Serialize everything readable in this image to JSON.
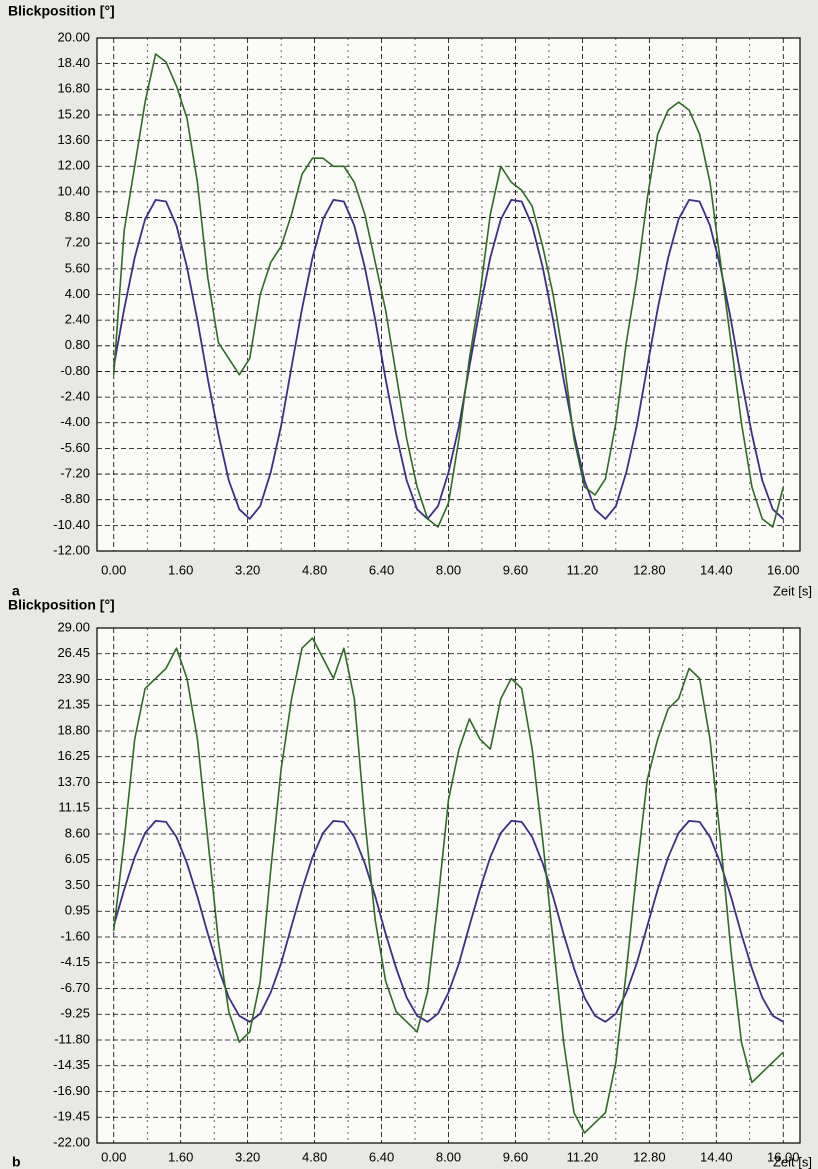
{
  "chart_data": [
    {
      "type": "line",
      "panel_label": "a",
      "ylabel": "Blickposition [°]",
      "xlabel": "Zeit [s]",
      "x": [
        0,
        0.25,
        0.5,
        0.75,
        1,
        1.25,
        1.5,
        1.75,
        2,
        2.25,
        2.5,
        2.75,
        3,
        3.25,
        3.5,
        3.75,
        4,
        4.25,
        4.5,
        4.75,
        5,
        5.25,
        5.5,
        5.75,
        6,
        6.25,
        6.5,
        6.75,
        7,
        7.25,
        7.5,
        7.75,
        8,
        8.25,
        8.5,
        8.75,
        9,
        9.25,
        9.5,
        9.75,
        10,
        10.25,
        10.5,
        10.75,
        11,
        11.25,
        11.5,
        11.75,
        12,
        12.25,
        12.5,
        12.75,
        13,
        13.25,
        13.5,
        13.75,
        14,
        14.25,
        14.5,
        14.75,
        15,
        15.25,
        15.5,
        15.75,
        16
      ],
      "series": [
        {
          "color": "#3b2f86",
          "values": [
            -0.5,
            3.1,
            6.3,
            8.7,
            9.9,
            9.8,
            8.3,
            5.7,
            2.4,
            -1.3,
            -4.7,
            -7.6,
            -9.4,
            -10,
            -9.2,
            -7.1,
            -4.2,
            -0.5,
            3.1,
            6.3,
            8.7,
            9.9,
            9.8,
            8.3,
            5.7,
            2.4,
            -1.3,
            -4.7,
            -7.6,
            -9.4,
            -10,
            -9.2,
            -7.1,
            -4.2,
            -0.5,
            3.1,
            6.3,
            8.7,
            9.9,
            9.8,
            8.3,
            5.7,
            2.4,
            -1.3,
            -4.7,
            -7.6,
            -9.4,
            -10,
            -9.2,
            -7.1,
            -4.2,
            -0.5,
            3.1,
            6.3,
            8.7,
            9.9,
            9.8,
            8.3,
            5.7,
            2.4,
            -1.3,
            -4.7,
            -7.6,
            -9.4,
            -10
          ]
        },
        {
          "color": "#2f6b25",
          "values": [
            -1,
            8,
            12,
            16,
            19,
            18.5,
            17,
            15,
            11,
            5,
            1,
            0,
            -1,
            0,
            4,
            6,
            7,
            9,
            11.5,
            12.5,
            12.5,
            12,
            12,
            11,
            9,
            6,
            3,
            -1,
            -5,
            -8,
            -10,
            -10.5,
            -9,
            -5,
            0,
            4,
            9,
            12,
            11,
            10.5,
            9.5,
            7,
            4,
            0,
            -5,
            -8,
            -8.5,
            -7.5,
            -4,
            1,
            5,
            10,
            14,
            15.5,
            16,
            15.5,
            14,
            11,
            6,
            1,
            -4,
            -8,
            -10,
            -10.5,
            -8
          ]
        }
      ],
      "xlim": [
        -0.4,
        16.4
      ],
      "ylim": [
        -12,
        20
      ],
      "xticks": [
        {
          "value": 0,
          "label": "0.00"
        },
        {
          "value": 1.6,
          "label": "1.60"
        },
        {
          "value": 3.2,
          "label": "3.20"
        },
        {
          "value": 4.8,
          "label": "4.80"
        },
        {
          "value": 6.4,
          "label": "6.40"
        },
        {
          "value": 8,
          "label": "8.00"
        },
        {
          "value": 9.6,
          "label": "9.60"
        },
        {
          "value": 11.2,
          "label": "11.20"
        },
        {
          "value": 12.8,
          "label": "12.80"
        },
        {
          "value": 14.4,
          "label": "14.40"
        },
        {
          "value": 16,
          "label": "16.00"
        }
      ],
      "xminorticks": [
        0.8,
        2.4,
        4,
        5.6,
        7.2,
        8.8,
        10.4,
        12,
        13.6,
        15.2
      ],
      "yticks": [
        {
          "value": 20,
          "label": "20.00"
        },
        {
          "value": 18.4,
          "label": "18.40"
        },
        {
          "value": 16.8,
          "label": "16.80"
        },
        {
          "value": 15.2,
          "label": "15.20"
        },
        {
          "value": 13.6,
          "label": "13.60"
        },
        {
          "value": 12,
          "label": "12.00"
        },
        {
          "value": 10.4,
          "label": "10.40"
        },
        {
          "value": 8.8,
          "label": "8.80"
        },
        {
          "value": 7.2,
          "label": "7.20"
        },
        {
          "value": 5.6,
          "label": "5.60"
        },
        {
          "value": 4,
          "label": "4.00"
        },
        {
          "value": 2.4,
          "label": "2.40"
        },
        {
          "value": 0.8,
          "label": "0.80"
        },
        {
          "value": -0.8,
          "label": "-0.80"
        },
        {
          "value": -2.4,
          "label": "-2.40"
        },
        {
          "value": -4,
          "label": "-4.00"
        },
        {
          "value": -5.6,
          "label": "-5.60"
        },
        {
          "value": -7.2,
          "label": "-7.20"
        },
        {
          "value": -8.8,
          "label": "-8.80"
        },
        {
          "value": -10.4,
          "label": "-10.40"
        },
        {
          "value": -12,
          "label": "-12.00"
        }
      ],
      "grid": true
    },
    {
      "type": "line",
      "panel_label": "b",
      "ylabel": "Blickposition [°]",
      "xlabel": "Zeit [s]",
      "x": [
        0,
        0.25,
        0.5,
        0.75,
        1,
        1.25,
        1.5,
        1.75,
        2,
        2.25,
        2.5,
        2.75,
        3,
        3.25,
        3.5,
        3.75,
        4,
        4.25,
        4.5,
        4.75,
        5,
        5.25,
        5.5,
        5.75,
        6,
        6.25,
        6.5,
        6.75,
        7,
        7.25,
        7.5,
        7.75,
        8,
        8.25,
        8.5,
        8.75,
        9,
        9.25,
        9.5,
        9.75,
        10,
        10.25,
        10.5,
        10.75,
        11,
        11.25,
        11.5,
        11.75,
        12,
        12.25,
        12.5,
        12.75,
        13,
        13.25,
        13.5,
        13.75,
        14,
        14.25,
        14.5,
        14.75,
        15,
        15.25,
        15.5,
        15.75,
        16
      ],
      "series": [
        {
          "color": "#3b2f86",
          "values": [
            -0.5,
            3.1,
            6.3,
            8.7,
            9.9,
            9.8,
            8.3,
            5.7,
            2.4,
            -1.3,
            -4.7,
            -7.6,
            -9.4,
            -10,
            -9.2,
            -7.1,
            -4.2,
            -0.5,
            3.1,
            6.3,
            8.7,
            9.9,
            9.8,
            8.3,
            5.7,
            2.4,
            -1.3,
            -4.7,
            -7.6,
            -9.4,
            -10,
            -9.2,
            -7.1,
            -4.2,
            -0.5,
            3.1,
            6.3,
            8.7,
            9.9,
            9.8,
            8.3,
            5.7,
            2.4,
            -1.3,
            -4.7,
            -7.6,
            -9.4,
            -10,
            -9.2,
            -7.1,
            -4.2,
            -0.5,
            3.1,
            6.3,
            8.7,
            9.9,
            9.8,
            8.3,
            5.7,
            2.4,
            -1.3,
            -4.7,
            -7.6,
            -9.4,
            -10
          ]
        },
        {
          "color": "#2f6b25",
          "values": [
            -1,
            8,
            18,
            23,
            24,
            25,
            27,
            24,
            18,
            8,
            -2,
            -9,
            -12,
            -11,
            -6,
            5,
            15,
            22,
            27,
            28,
            26,
            24,
            27,
            22,
            10,
            0,
            -6,
            -9,
            -10,
            -11,
            -7,
            2,
            12,
            17,
            20,
            18,
            17,
            22,
            24,
            23,
            17,
            8,
            -2,
            -12,
            -19,
            -21,
            -20,
            -19,
            -14,
            -5,
            5,
            14,
            18,
            21,
            22,
            25,
            24,
            18,
            8,
            -3,
            -12,
            -16,
            -15,
            -14,
            -13
          ]
        }
      ],
      "xlim": [
        -0.4,
        16.4
      ],
      "ylim": [
        -22,
        29
      ],
      "xticks": [
        {
          "value": 0,
          "label": "0.00"
        },
        {
          "value": 1.6,
          "label": "1.60"
        },
        {
          "value": 3.2,
          "label": "3.20"
        },
        {
          "value": 4.8,
          "label": "4.80"
        },
        {
          "value": 6.4,
          "label": "6.40"
        },
        {
          "value": 8,
          "label": "8.00"
        },
        {
          "value": 9.6,
          "label": "9.60"
        },
        {
          "value": 11.2,
          "label": "11.20"
        },
        {
          "value": 12.8,
          "label": "12.80"
        },
        {
          "value": 14.4,
          "label": "14.40"
        },
        {
          "value": 16,
          "label": "16.00"
        }
      ],
      "xminorticks": [
        0.8,
        2.4,
        4,
        5.6,
        7.2,
        8.8,
        10.4,
        12,
        13.6,
        15.2
      ],
      "yticks": [
        {
          "value": 29,
          "label": "29.00"
        },
        {
          "value": 26.45,
          "label": "26.45"
        },
        {
          "value": 23.9,
          "label": "23.90"
        },
        {
          "value": 21.35,
          "label": "21.35"
        },
        {
          "value": 18.8,
          "label": "18.80"
        },
        {
          "value": 16.25,
          "label": "16.25"
        },
        {
          "value": 13.7,
          "label": "13.70"
        },
        {
          "value": 11.15,
          "label": "11.15"
        },
        {
          "value": 8.6,
          "label": "8.60"
        },
        {
          "value": 6.05,
          "label": "6.05"
        },
        {
          "value": 3.5,
          "label": "3.50"
        },
        {
          "value": 0.95,
          "label": "0.95"
        },
        {
          "value": -1.6,
          "label": "-1.60"
        },
        {
          "value": -4.15,
          "label": "-4.15"
        },
        {
          "value": -6.7,
          "label": "-6.70"
        },
        {
          "value": -9.25,
          "label": "-9.25"
        },
        {
          "value": -11.8,
          "label": "-11.80"
        },
        {
          "value": -14.35,
          "label": "-14.35"
        },
        {
          "value": -16.9,
          "label": "-16.90"
        },
        {
          "value": -19.45,
          "label": "-19.45"
        },
        {
          "value": -22,
          "label": "-22.00"
        }
      ],
      "grid": true
    }
  ]
}
